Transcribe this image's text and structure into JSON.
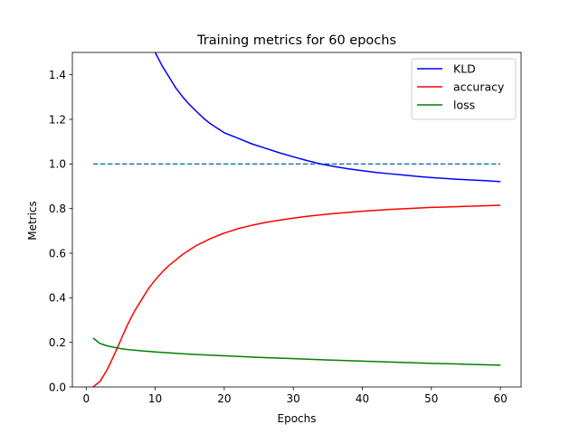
{
  "chart_data": {
    "type": "line",
    "title": "Training metrics for 60 epochs",
    "xlabel": "Epochs",
    "ylabel": "Metrics",
    "xlim": [
      -2,
      63
    ],
    "ylim": [
      0.0,
      1.5
    ],
    "xticks": [
      "0",
      "10",
      "20",
      "30",
      "40",
      "50",
      "60"
    ],
    "xtick_values": [
      0,
      10,
      20,
      30,
      40,
      50,
      60
    ],
    "yticks": [
      "0.0",
      "0.2",
      "0.4",
      "0.6",
      "0.8",
      "1.0",
      "1.2",
      "1.4"
    ],
    "ytick_values": [
      0.0,
      0.2,
      0.4,
      0.6,
      0.8,
      1.0,
      1.2,
      1.4
    ],
    "legend_position": "top-right",
    "grid": false,
    "series": [
      {
        "name": "KLD",
        "color": "#0000ff",
        "x": [
          10,
          11,
          12,
          13,
          14,
          15,
          16,
          17,
          18,
          19,
          20,
          22,
          24,
          26,
          28,
          30,
          32,
          34,
          36,
          38,
          40,
          42,
          44,
          46,
          48,
          50,
          52,
          54,
          56,
          58,
          60
        ],
        "y": [
          1.5,
          1.44,
          1.39,
          1.34,
          1.3,
          1.265,
          1.235,
          1.205,
          1.18,
          1.16,
          1.14,
          1.115,
          1.09,
          1.07,
          1.05,
          1.032,
          1.015,
          1.0,
          0.988,
          0.978,
          0.97,
          0.962,
          0.956,
          0.95,
          0.944,
          0.939,
          0.935,
          0.931,
          0.928,
          0.925,
          0.921
        ]
      },
      {
        "name": "accuracy",
        "color": "#ff0000",
        "x": [
          1,
          2,
          3,
          4,
          5,
          6,
          7,
          8,
          9,
          10,
          11,
          12,
          13,
          14,
          15,
          16,
          17,
          18,
          19,
          20,
          22,
          24,
          26,
          28,
          30,
          32,
          34,
          36,
          38,
          40,
          42,
          44,
          46,
          48,
          50,
          52,
          54,
          56,
          58,
          60
        ],
        "y": [
          0.0,
          0.025,
          0.075,
          0.14,
          0.21,
          0.28,
          0.34,
          0.39,
          0.44,
          0.48,
          0.515,
          0.545,
          0.57,
          0.595,
          0.615,
          0.635,
          0.65,
          0.665,
          0.678,
          0.69,
          0.71,
          0.725,
          0.738,
          0.748,
          0.757,
          0.765,
          0.772,
          0.778,
          0.783,
          0.788,
          0.792,
          0.796,
          0.799,
          0.802,
          0.805,
          0.807,
          0.809,
          0.811,
          0.813,
          0.815
        ]
      },
      {
        "name": "loss",
        "color": "#008000",
        "x": [
          1,
          2,
          3,
          4,
          5,
          6,
          8,
          10,
          12,
          15,
          20,
          25,
          30,
          35,
          40,
          45,
          50,
          55,
          60
        ],
        "y": [
          0.22,
          0.195,
          0.185,
          0.178,
          0.172,
          0.168,
          0.162,
          0.157,
          0.153,
          0.147,
          0.14,
          0.133,
          0.127,
          0.121,
          0.116,
          0.111,
          0.106,
          0.102,
          0.098
        ]
      }
    ],
    "reference_line": {
      "y": 1.0,
      "x_range": [
        1,
        60
      ],
      "style": "dashed",
      "color": "#1f77b4"
    }
  }
}
